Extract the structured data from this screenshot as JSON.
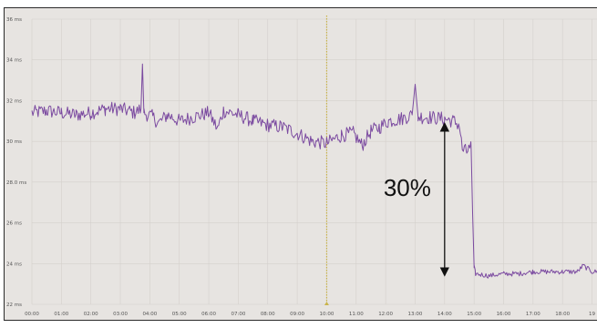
{
  "chart_data": {
    "type": "line",
    "title": "",
    "xlabel": "",
    "ylabel": "",
    "x_ticks": [
      "00:00",
      "01:00",
      "02:00",
      "03:00",
      "04:00",
      "05:00",
      "06:00",
      "07:00",
      "08:00",
      "09:00",
      "10:00",
      "11:00",
      "12:00",
      "13:00",
      "14:00",
      "15:00",
      "16:00",
      "17:00",
      "18:00",
      "19"
    ],
    "y_ticks": [
      {
        "v": 36,
        "label": "36 ms"
      },
      {
        "v": 34,
        "label": "34 ms"
      },
      {
        "v": 32,
        "label": "32 ms"
      },
      {
        "v": 30,
        "label": "30 ms"
      },
      {
        "v": 28,
        "label": "28.0 ms"
      },
      {
        "v": 26,
        "label": "26 ms"
      },
      {
        "v": 24,
        "label": "24 ms"
      },
      {
        "v": 22,
        "label": "22 ms"
      }
    ],
    "ylim": [
      22,
      36
    ],
    "xlim": [
      0,
      19.2
    ],
    "grid": true,
    "series": [
      {
        "color": "#7b4aa0",
        "x": [
          0,
          0.5,
          1,
          1.5,
          2,
          2.5,
          3,
          3.5,
          3.7,
          3.75,
          3.8,
          4.1,
          4.3,
          4.6,
          5,
          5.5,
          6,
          6.3,
          6.5,
          7,
          7.5,
          8,
          8.5,
          9,
          9.5,
          10,
          10.5,
          10.9,
          11.2,
          11.5,
          11.8,
          12.1,
          12.5,
          12.9,
          13,
          13.1,
          13.4,
          14,
          14.3,
          14.5,
          14.6,
          14.75,
          14.9,
          14.95,
          15.0,
          15.05,
          15.5,
          16,
          16.5,
          17,
          17.5,
          18,
          18.5,
          18.7,
          19,
          19.2
        ],
        "y": [
          31.4,
          31.5,
          31.4,
          31.3,
          31.4,
          31.6,
          31.6,
          31.4,
          31.6,
          33.8,
          31.4,
          31.2,
          30.9,
          31.3,
          31.0,
          31.2,
          31.4,
          30.6,
          31.5,
          31.3,
          31.0,
          30.8,
          30.7,
          30.4,
          30.0,
          29.9,
          30.3,
          30.4,
          29.8,
          30.5,
          30.7,
          31.0,
          31.1,
          31.3,
          32.8,
          31.2,
          31.2,
          31.1,
          31.0,
          30.8,
          29.6,
          29.5,
          29.7,
          26.5,
          23.8,
          23.5,
          23.4,
          23.5,
          23.5,
          23.6,
          23.6,
          23.6,
          23.6,
          23.9,
          23.6,
          23.6
        ]
      }
    ],
    "markers": [
      {
        "x": 10.0,
        "color": "#c9b44a",
        "style": "dotted-vertical"
      }
    ],
    "annotations": [
      {
        "text": "30%",
        "arrow_from_y": 30.8,
        "arrow_to_y": 23.5,
        "x": 14.0
      }
    ]
  }
}
